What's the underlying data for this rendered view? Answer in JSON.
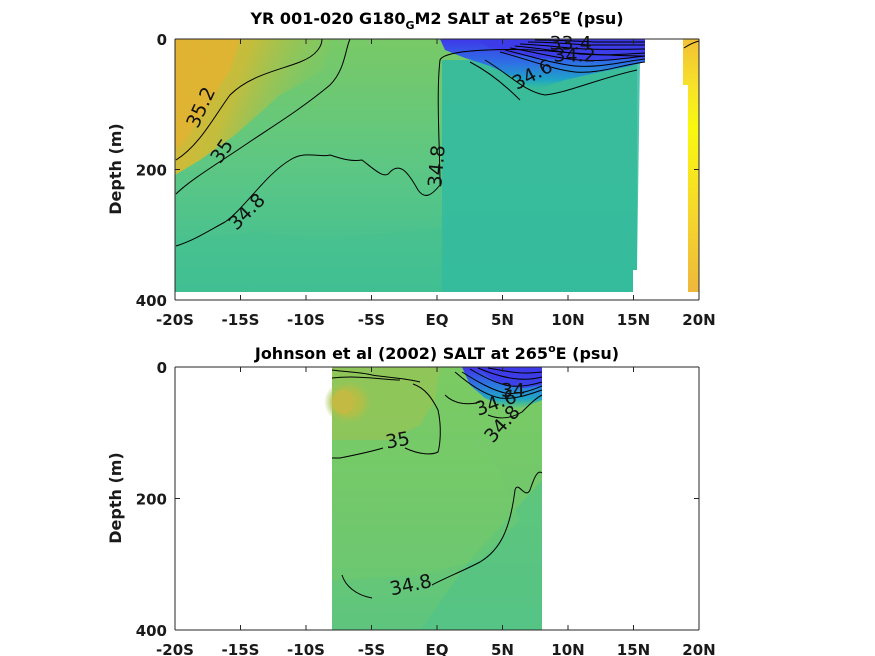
{
  "chart_data": [
    {
      "type": "heatmap",
      "title_prefix": "YR 001-020 G180",
      "title_sub": "G",
      "title_mid": "M2 SALT at 265",
      "title_sup": "o",
      "title_suffix": "E (psu)",
      "ylabel": "Depth (m)",
      "xlabel": "",
      "x_ticks": [
        -20,
        -15,
        -10,
        -5,
        0,
        5,
        10,
        15,
        20
      ],
      "x_tick_labels": [
        "-20S",
        "-15S",
        "-10S",
        "-5S",
        "EQ",
        "5N",
        "10N",
        "15N",
        "20N"
      ],
      "y_ticks": [
        0,
        200,
        400
      ],
      "y_tick_labels": [
        "0",
        "200",
        "400"
      ],
      "xlim": [
        -20,
        20
      ],
      "ylim": [
        400,
        0
      ],
      "colormap": "parula",
      "contour_labels": [
        {
          "text": "35.2",
          "lat": -18,
          "depth": 105,
          "angle": -65
        },
        {
          "text": "35",
          "lat": -16.4,
          "depth": 172,
          "angle": -55
        },
        {
          "text": "34.8",
          "lat": -14.5,
          "depth": 265,
          "angle": -45
        },
        {
          "text": "34.8",
          "lat": 0,
          "depth": 195,
          "angle": -85
        },
        {
          "text": "34.6",
          "lat": 7.3,
          "depth": 55,
          "angle": -28
        },
        {
          "text": "33.4",
          "lat": 10.2,
          "depth": 7,
          "angle": 0
        },
        {
          "text": "34.2",
          "lat": 10.5,
          "depth": 25,
          "angle": 0
        }
      ]
    },
    {
      "type": "heatmap",
      "title_prefix": "Johnson et al (2002) SALT at 265",
      "title_sup": "o",
      "title_suffix": "E (psu)",
      "ylabel": "Depth (m)",
      "xlabel": "",
      "x_ticks": [
        -20,
        -15,
        -10,
        -5,
        0,
        5,
        10,
        15,
        20
      ],
      "x_tick_labels": [
        "-20S",
        "-15S",
        "-10S",
        "-5S",
        "EQ",
        "5N",
        "10N",
        "15N",
        "20N"
      ],
      "y_ticks": [
        0,
        200,
        400
      ],
      "y_tick_labels": [
        "0",
        "200",
        "400"
      ],
      "xlim": [
        -20,
        20
      ],
      "ylim": [
        400,
        0
      ],
      "data_extent_lat": [
        -8,
        8
      ],
      "colormap": "parula",
      "contour_labels": [
        {
          "text": "34",
          "lat": 5.8,
          "depth": 36,
          "angle": 0
        },
        {
          "text": "34.6",
          "lat": 4.5,
          "depth": 55,
          "angle": -20
        },
        {
          "text": "34.8",
          "lat": 5,
          "depth": 87,
          "angle": -48
        },
        {
          "text": "35",
          "lat": -3,
          "depth": 112,
          "angle": -10
        },
        {
          "text": "34.8",
          "lat": -2,
          "depth": 332,
          "angle": -12
        }
      ]
    }
  ]
}
